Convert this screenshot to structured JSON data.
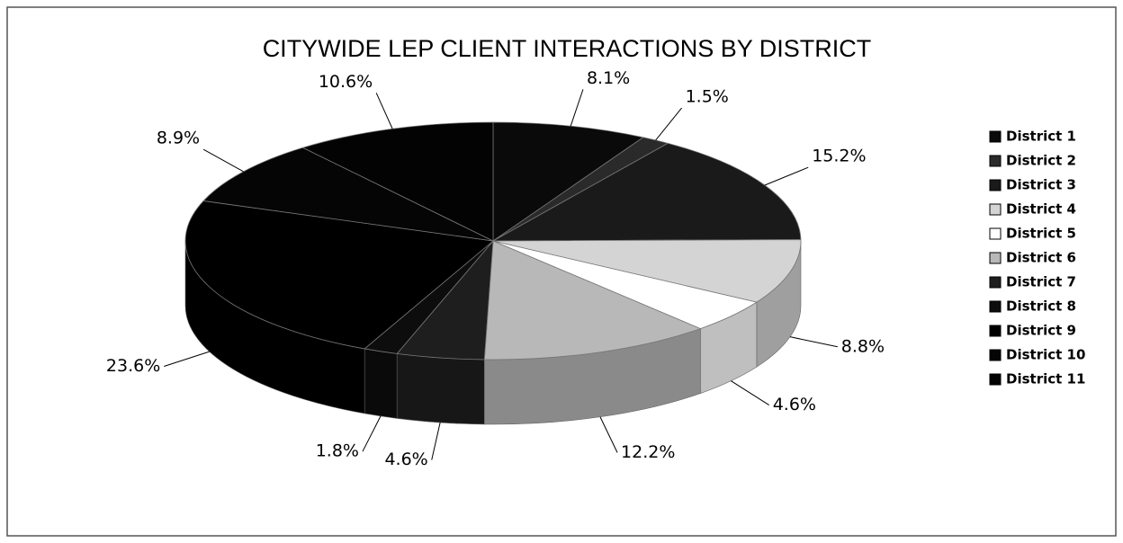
{
  "chart_data": {
    "type": "pie",
    "title": "CITYWIDE LEP CLIENT INTERACTIONS BY DISTRICT",
    "categories": [
      "District 1",
      "District 2",
      "District 3",
      "District 4",
      "District 5",
      "District 6",
      "District 7",
      "District 8",
      "District 9",
      "District 10",
      "District 11"
    ],
    "values": [
      8.1,
      1.5,
      15.2,
      8.8,
      4.6,
      12.2,
      4.6,
      1.8,
      23.6,
      8.9,
      10.6
    ],
    "value_labels": [
      "8.1%",
      "1.5%",
      "15.2%",
      "8.8%",
      "4.6%",
      "12.2%",
      "4.6%",
      "1.8%",
      "23.6%",
      "8.9%",
      "10.6%"
    ],
    "colors": [
      "#0a0a0a",
      "#2a2a2a",
      "#1a1a1a",
      "#d4d4d4",
      "#ffffff",
      "#b8b8b8",
      "#1e1e1e",
      "#0d0d0d",
      "#000000",
      "#050505",
      "#030303"
    ],
    "legend": "right"
  }
}
